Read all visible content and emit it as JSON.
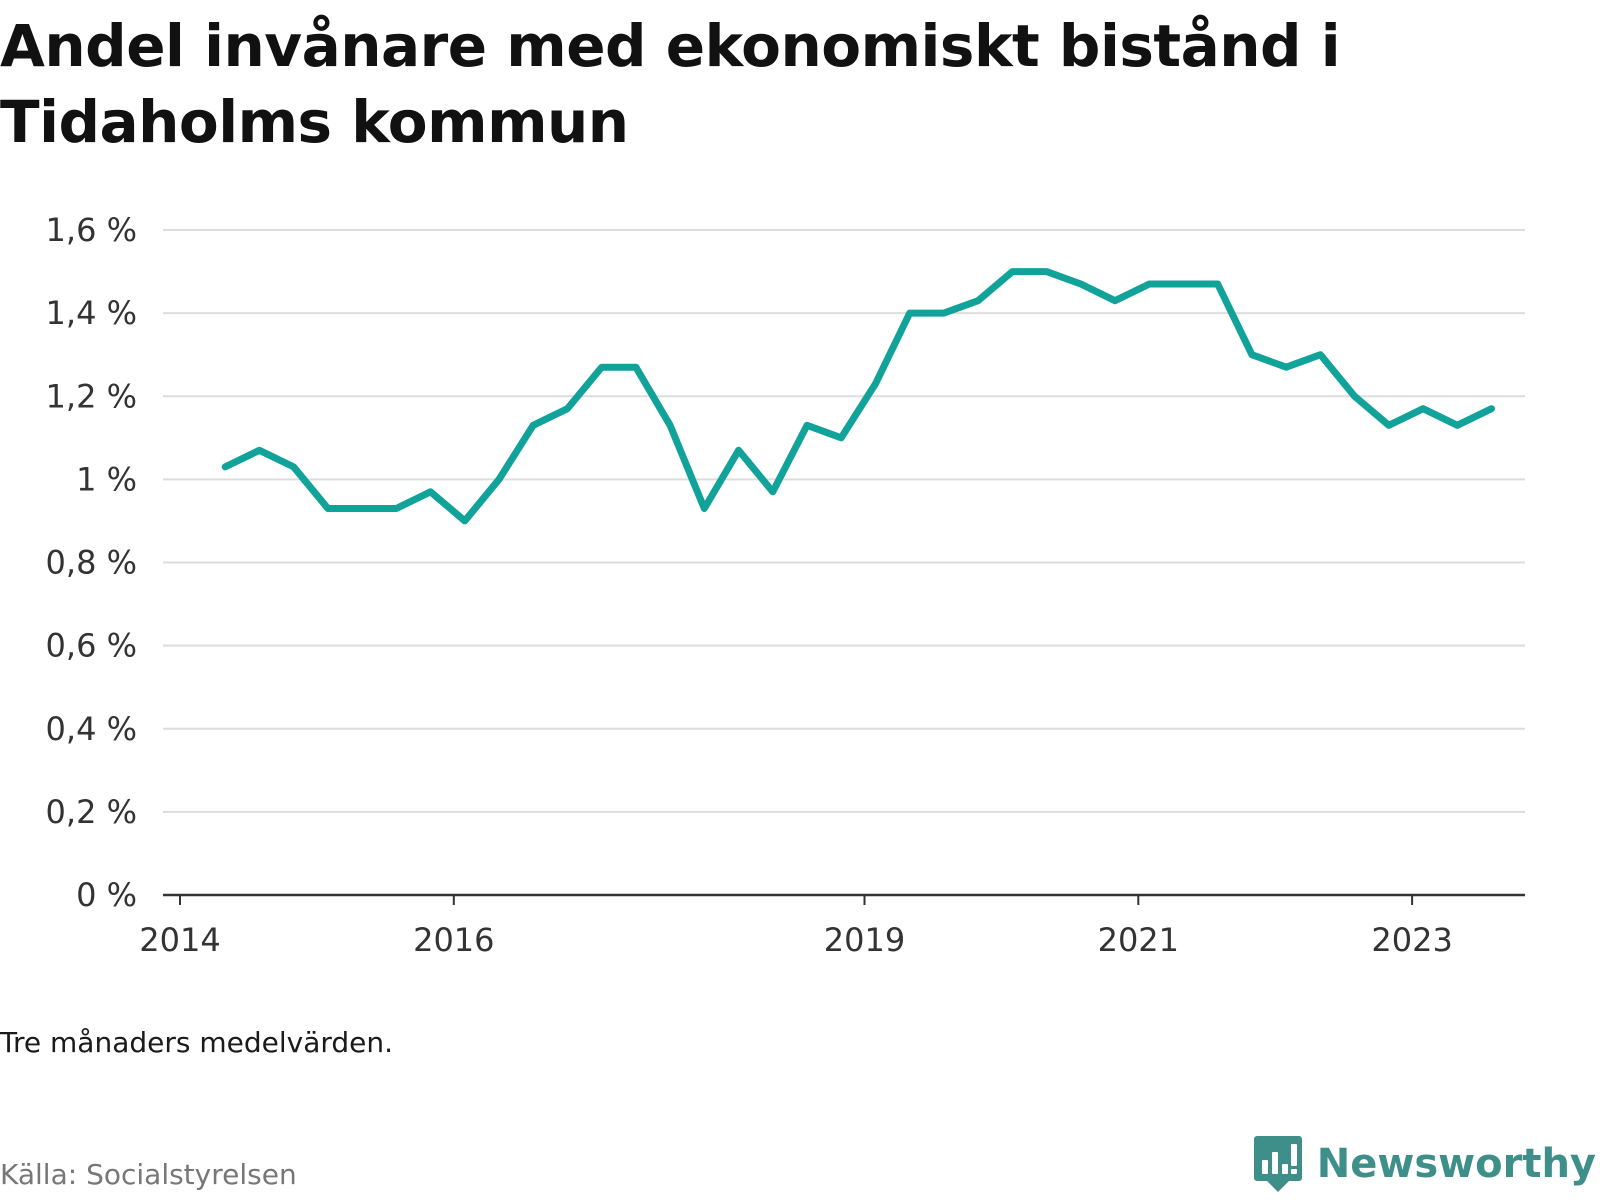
{
  "title": "Andel invånare med ekonomiskt bistånd i Tidaholms kommun",
  "note": "Tre månaders medelvärden.",
  "source": "Källa: Socialstyrelsen",
  "brand": {
    "name": "Newsworthy",
    "icon": "newsworthy-logo-icon",
    "color": "#3e8f8a"
  },
  "chart_data": {
    "type": "line",
    "title": "Andel invånare med ekonomiskt bistånd i Tidaholms kommun",
    "xlabel": "",
    "ylabel": "",
    "xlim": [
      2014.0,
      2024.25
    ],
    "ylim": [
      0,
      1.6
    ],
    "x_ticks": [
      2014,
      2016,
      2019,
      2021,
      2023
    ],
    "y_ticks": [
      0,
      0.2,
      0.4,
      0.6,
      0.8,
      1.0,
      1.2,
      1.4,
      1.6
    ],
    "y_tick_labels": [
      "0 %",
      "0,2 %",
      "0,4 %",
      "0,6 %",
      "0,8 %",
      "1 %",
      "1,2 %",
      "1,4 %",
      "1,6 %"
    ],
    "grid": true,
    "line_color": "#11a399",
    "series": [
      {
        "x": [
          2014.33,
          2014.58,
          2014.83,
          2015.08,
          2015.33,
          2015.58,
          2015.83,
          2016.08,
          2016.33,
          2016.58,
          2016.83,
          2017.08,
          2017.33,
          2017.58,
          2017.83,
          2018.08,
          2018.33,
          2018.58,
          2018.83,
          2019.08,
          2019.33,
          2019.58,
          2019.83,
          2020.08,
          2020.33,
          2020.58,
          2020.83,
          2021.08,
          2021.33,
          2021.58,
          2021.83,
          2022.08,
          2022.33,
          2022.58,
          2022.83,
          2023.08,
          2023.33,
          2023.58
        ],
        "values": [
          1.03,
          1.07,
          1.03,
          0.93,
          0.93,
          0.93,
          0.97,
          0.9,
          1.0,
          1.13,
          1.17,
          1.27,
          1.27,
          1.13,
          0.93,
          1.07,
          0.97,
          1.13,
          1.1,
          1.23,
          1.4,
          1.4,
          1.43,
          1.5,
          1.5,
          1.47,
          1.43,
          1.47,
          1.47,
          1.47,
          1.3,
          1.27,
          1.3,
          1.2,
          1.13,
          1.17,
          1.13,
          1.17
        ]
      }
    ]
  }
}
